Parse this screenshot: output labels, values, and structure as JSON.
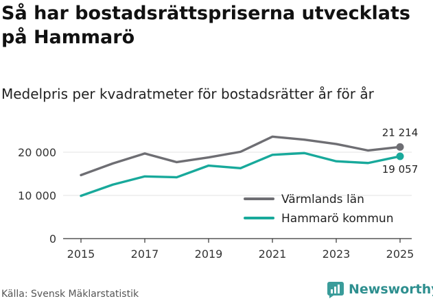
{
  "title": "Så har bostadsrättspriserna utvecklats på Hammarö",
  "subtitle": "Medelpris per kvadratmeter för bostadsrätter år för år",
  "source": "Källa: Svensk Mäklarstatistik",
  "brand": "Newsworthy",
  "colors": {
    "lan": "#6e6e73",
    "kommun": "#18a99b",
    "brand": "#3a9c9a"
  },
  "chart_data": {
    "type": "line",
    "title": "",
    "xlabel": "",
    "ylabel": "",
    "x": [
      2015,
      2016,
      2017,
      2018,
      2019,
      2020,
      2021,
      2022,
      2023,
      2024,
      2025
    ],
    "x_ticks": [
      "2015",
      "2017",
      "2019",
      "2021",
      "2023",
      "2025"
    ],
    "y_ticks": [
      0,
      10000,
      20000
    ],
    "y_tick_labels": [
      "0",
      "10 000",
      "20 000"
    ],
    "xlim": [
      2015,
      2025
    ],
    "ylim": [
      0,
      25000
    ],
    "grid": true,
    "legend_position": "bottom-right",
    "series": [
      {
        "name": "Värmlands län",
        "values": [
          14700,
          17400,
          19700,
          17700,
          18800,
          20100,
          23600,
          22900,
          21900,
          20400,
          21214
        ],
        "end_label": "21 214"
      },
      {
        "name": "Hammarö kommun",
        "values": [
          9900,
          12500,
          14400,
          14200,
          16900,
          16300,
          19400,
          19800,
          17900,
          17500,
          19057
        ],
        "end_label": "19 057"
      }
    ]
  }
}
